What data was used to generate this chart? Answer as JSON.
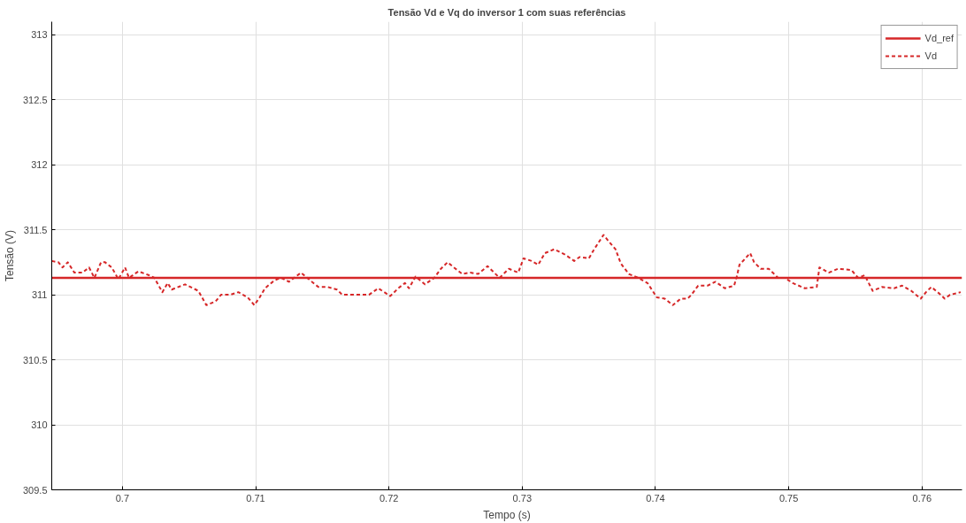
{
  "chart_data": {
    "type": "line",
    "title": "Tensão Vd e Vq do inversor 1 com suas referências",
    "xlabel": "Tempo (s)",
    "ylabel": "Tensão (V)",
    "xlim": [
      0.6947,
      0.763
    ],
    "xticks": [
      0.7,
      0.71,
      0.72,
      0.73,
      0.74,
      0.75,
      0.76
    ],
    "ylim": [
      309.5,
      313.1
    ],
    "yticks": [
      309.5,
      310,
      310.5,
      311,
      311.5,
      312,
      312.5,
      313
    ],
    "grid": true,
    "legend": "top right",
    "series": [
      {
        "name": "Vd_ref",
        "color": "#d62728",
        "line_style": "solid",
        "x": [
          0.6947,
          0.763
        ],
        "values": [
          311.13,
          311.13
        ]
      },
      {
        "name": "Vd",
        "color": "#d62728",
        "line_style": "dashed",
        "x": [
          0.6947,
          0.6952,
          0.6955,
          0.6959,
          0.6964,
          0.697,
          0.6975,
          0.6979,
          0.6984,
          0.6987,
          0.6992,
          0.6997,
          0.7002,
          0.7005,
          0.7012,
          0.702,
          0.7024,
          0.703,
          0.7034,
          0.7037,
          0.7047,
          0.7057,
          0.7063,
          0.707,
          0.7074,
          0.7081,
          0.7087,
          0.7094,
          0.7099,
          0.7103,
          0.7107,
          0.7114,
          0.7119,
          0.7125,
          0.7134,
          0.7141,
          0.7147,
          0.7154,
          0.7161,
          0.7165,
          0.7172,
          0.7183,
          0.7185,
          0.7192,
          0.7201,
          0.7207,
          0.7212,
          0.7215,
          0.722,
          0.7227,
          0.7234,
          0.7239,
          0.7244,
          0.725,
          0.7255,
          0.7261,
          0.7267,
          0.7274,
          0.7283,
          0.729,
          0.7297,
          0.7301,
          0.7307,
          0.7312,
          0.7317,
          0.7324,
          0.7332,
          0.7339,
          0.7343,
          0.735,
          0.7354,
          0.7361,
          0.7365,
          0.737,
          0.7374,
          0.738,
          0.7387,
          0.7394,
          0.7401,
          0.7407,
          0.7413,
          0.7419,
          0.7424,
          0.7427,
          0.7432,
          0.7439,
          0.7445,
          0.7452,
          0.7459,
          0.7461,
          0.7463,
          0.7471,
          0.7474,
          0.7479,
          0.7485,
          0.7492,
          0.7497,
          0.7503,
          0.7512,
          0.7521,
          0.7523,
          0.753,
          0.7537,
          0.7547,
          0.7552,
          0.7557,
          0.7563,
          0.757,
          0.7579,
          0.7585,
          0.7592,
          0.7599,
          0.7603,
          0.7607,
          0.7614,
          0.7617,
          0.7621,
          0.7629
        ],
        "values": [
          311.26,
          311.25,
          311.21,
          311.25,
          311.17,
          311.17,
          311.21,
          311.13,
          311.25,
          311.25,
          311.21,
          311.12,
          311.21,
          311.13,
          311.18,
          311.15,
          311.13,
          311.02,
          311.09,
          311.04,
          311.08,
          311.03,
          310.92,
          310.95,
          311.0,
          311.0,
          311.02,
          310.98,
          310.92,
          310.98,
          311.05,
          311.11,
          311.13,
          311.1,
          311.17,
          311.11,
          311.06,
          311.06,
          311.04,
          311.0,
          311.0,
          311.0,
          311.0,
          311.05,
          310.99,
          311.05,
          311.09,
          311.05,
          311.14,
          311.08,
          311.13,
          311.2,
          311.25,
          311.2,
          311.16,
          311.17,
          311.16,
          311.22,
          311.13,
          311.2,
          311.17,
          311.28,
          311.26,
          311.23,
          311.32,
          311.35,
          311.31,
          311.26,
          311.29,
          311.28,
          311.35,
          311.46,
          311.41,
          311.35,
          311.24,
          311.16,
          311.13,
          311.09,
          310.98,
          310.97,
          310.92,
          310.97,
          310.97,
          311.0,
          311.07,
          311.07,
          311.1,
          311.05,
          311.07,
          311.14,
          311.23,
          311.32,
          311.25,
          311.2,
          311.2,
          311.13,
          311.13,
          311.09,
          311.05,
          311.06,
          311.21,
          311.17,
          311.2,
          311.19,
          311.13,
          311.15,
          311.03,
          311.06,
          311.05,
          311.07,
          311.03,
          310.97,
          311.02,
          311.06,
          311.0,
          310.97,
          311.0,
          311.02
        ]
      }
    ]
  }
}
